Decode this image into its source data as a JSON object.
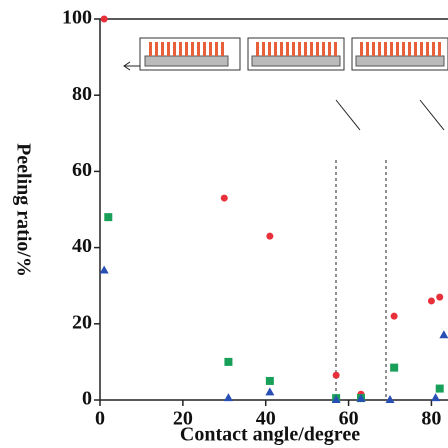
{
  "chart_data": {
    "type": "scatter",
    "x_label": "Contact angle/degree",
    "y_label": "Peeling ratio/%",
    "xlim": [
      0,
      84
    ],
    "ylim": [
      0,
      100
    ],
    "xticks": [
      0,
      20,
      40,
      60,
      80
    ],
    "yticks": [
      0,
      20,
      40,
      60,
      80,
      100
    ],
    "series": [
      {
        "color": "#e8303a",
        "marker": "circle",
        "x": [
          1,
          30,
          41,
          57,
          63,
          71,
          80,
          82
        ],
        "values": [
          100,
          53,
          43,
          6.5,
          1.5,
          22,
          26,
          27
        ]
      },
      {
        "color": "#18a058",
        "marker": "square",
        "x": [
          2,
          31,
          41,
          57,
          63,
          71,
          82
        ],
        "values": [
          48,
          10,
          5,
          0.5,
          0.5,
          8.5,
          3
        ]
      },
      {
        "color": "#2850b4",
        "marker": "triangle",
        "x": [
          1,
          31,
          41,
          57,
          63,
          70,
          81,
          83
        ],
        "values": [
          34,
          0.5,
          2,
          0,
          0.3,
          0,
          0.5,
          17
        ]
      }
    ]
  }
}
